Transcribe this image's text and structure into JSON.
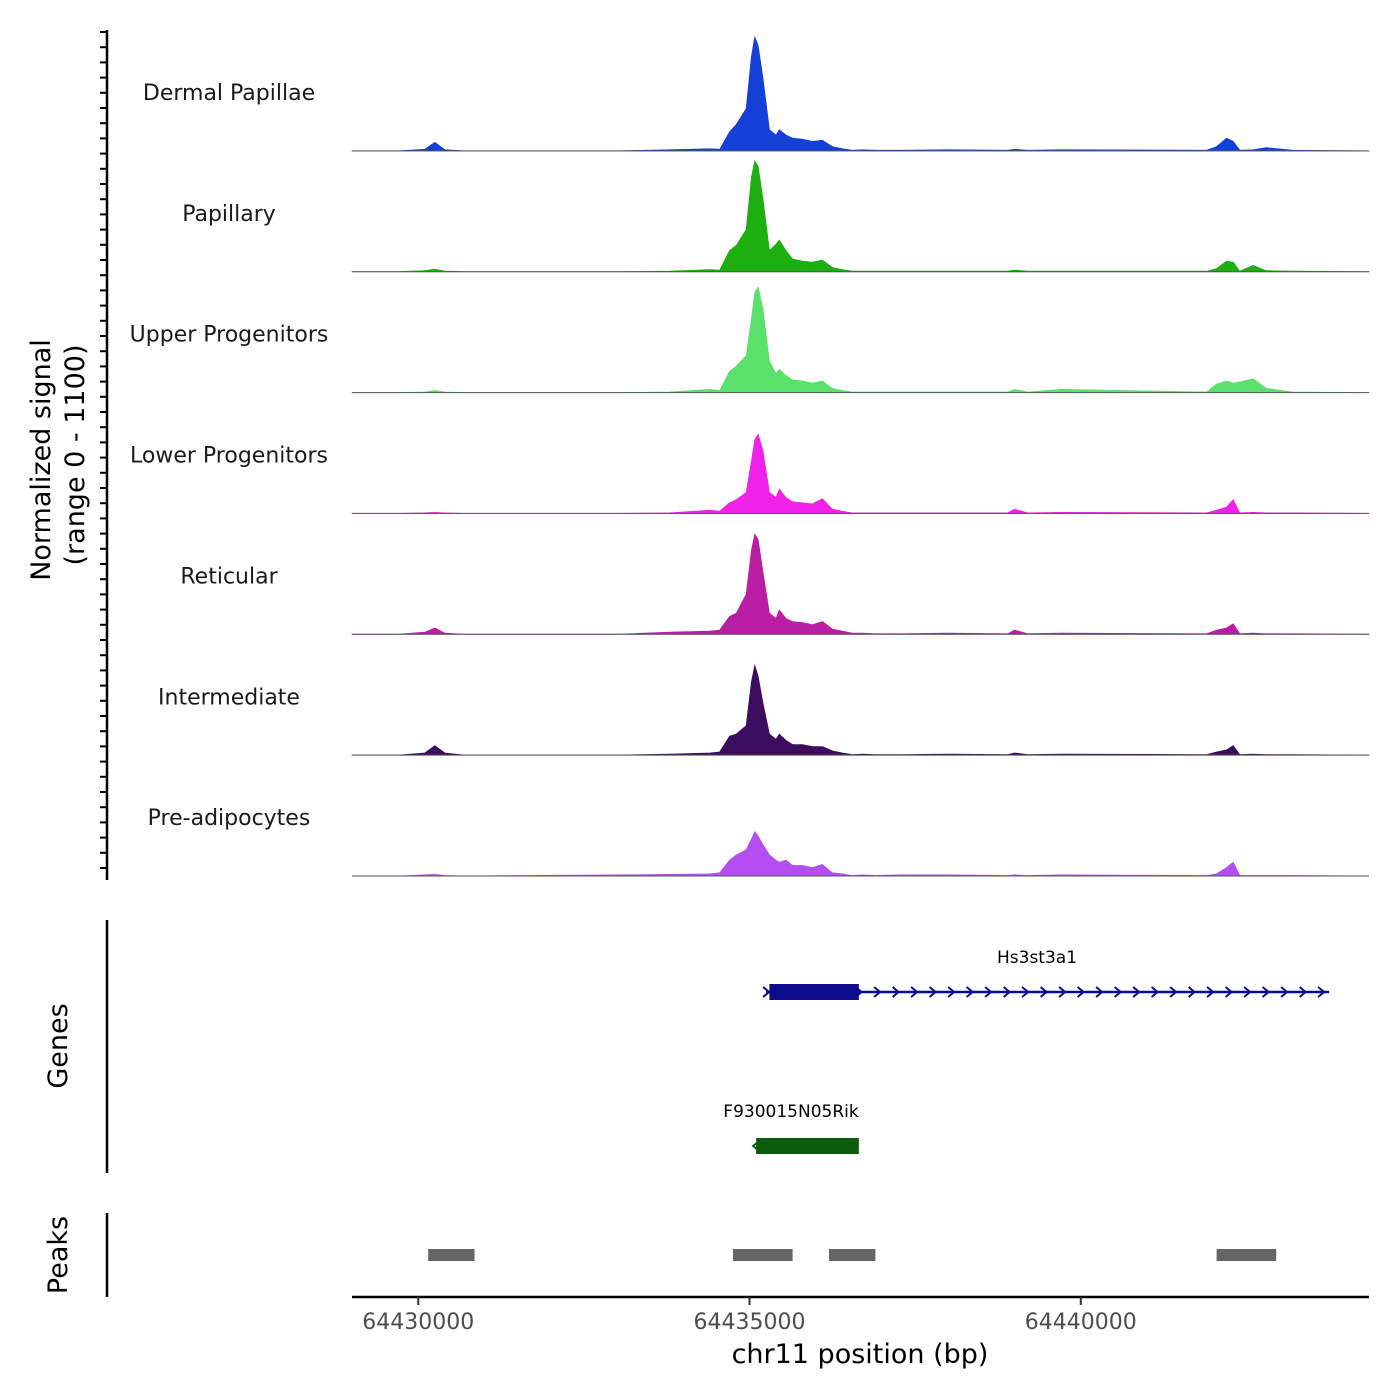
{
  "chart_data": {
    "type": "area",
    "title": "",
    "ylabel_line1": "Normalized signal",
    "ylabel_line2": "(range 0 - 1100)",
    "xlabel": "chr11 position (bp)",
    "xlim": [
      64429000,
      64444350
    ],
    "ylim": [
      0,
      1100
    ],
    "x_ticks": [
      {
        "value": 64430000,
        "label": "64430000"
      },
      {
        "value": 64435000,
        "label": "64435000"
      },
      {
        "value": 64440000,
        "label": "64440000"
      }
    ],
    "bin_positions": [
      64429000,
      64429700,
      64430100,
      64430250,
      64430400,
      64430700,
      64433000,
      64433800,
      64434400,
      64434550,
      64434700,
      64434800,
      64434950,
      64435030,
      64435080,
      64435130,
      64435200,
      64435300,
      64435400,
      64435450,
      64435550,
      64435650,
      64435800,
      64435950,
      64436100,
      64436250,
      64436400,
      64436550,
      64436700,
      64436900,
      64437300,
      64438000,
      64438900,
      64439000,
      64439200,
      64439700,
      64441900,
      64442050,
      64442200,
      64442300,
      64442400,
      64442600,
      64442800,
      64443200,
      64444350
    ],
    "series": [
      {
        "name": "Dermal Papillae",
        "color": "#1540d8",
        "values": [
          0,
          0,
          15,
          80,
          10,
          0,
          0,
          10,
          20,
          15,
          180,
          250,
          400,
          900,
          1080,
          1000,
          700,
          200,
          150,
          200,
          150,
          120,
          110,
          90,
          100,
          40,
          20,
          5,
          10,
          5,
          5,
          10,
          5,
          15,
          5,
          10,
          5,
          40,
          120,
          90,
          5,
          10,
          30,
          5,
          0
        ]
      },
      {
        "name": "Papillary",
        "color": "#1caf0f",
        "values": [
          0,
          0,
          10,
          25,
          5,
          0,
          0,
          5,
          20,
          15,
          200,
          250,
          400,
          900,
          1050,
          1000,
          700,
          200,
          260,
          300,
          200,
          120,
          100,
          90,
          110,
          40,
          20,
          5,
          5,
          5,
          5,
          5,
          5,
          15,
          5,
          5,
          5,
          30,
          100,
          90,
          5,
          60,
          10,
          5,
          0
        ]
      },
      {
        "name": "Upper Progenitors",
        "color": "#5be06b",
        "values": [
          0,
          0,
          5,
          20,
          5,
          0,
          0,
          5,
          30,
          20,
          200,
          250,
          350,
          700,
          950,
          1000,
          800,
          300,
          180,
          220,
          160,
          120,
          110,
          90,
          110,
          40,
          20,
          5,
          5,
          5,
          5,
          5,
          5,
          30,
          5,
          30,
          5,
          80,
          110,
          90,
          100,
          130,
          40,
          5,
          0
        ]
      },
      {
        "name": "Lower Progenitors",
        "color": "#f022e8",
        "values": [
          0,
          0,
          5,
          10,
          5,
          0,
          0,
          5,
          30,
          20,
          100,
          130,
          200,
          500,
          700,
          750,
          600,
          200,
          150,
          230,
          150,
          110,
          100,
          90,
          140,
          40,
          20,
          5,
          5,
          5,
          5,
          5,
          5,
          40,
          5,
          10,
          5,
          30,
          60,
          130,
          5,
          10,
          5,
          5,
          0
        ]
      },
      {
        "name": "Reticular",
        "color": "#b91ea4",
        "values": [
          0,
          0,
          20,
          60,
          10,
          0,
          0,
          20,
          30,
          40,
          170,
          200,
          380,
          800,
          950,
          900,
          600,
          200,
          150,
          230,
          150,
          120,
          110,
          90,
          120,
          50,
          30,
          10,
          10,
          5,
          5,
          10,
          5,
          40,
          5,
          10,
          5,
          40,
          60,
          100,
          5,
          10,
          5,
          5,
          0
        ]
      },
      {
        "name": "Intermediate",
        "color": "#3c0c5e",
        "values": [
          0,
          0,
          20,
          90,
          20,
          0,
          0,
          10,
          20,
          30,
          180,
          200,
          280,
          700,
          850,
          750,
          500,
          200,
          150,
          200,
          140,
          100,
          100,
          80,
          80,
          40,
          20,
          5,
          10,
          5,
          5,
          10,
          5,
          20,
          5,
          10,
          5,
          30,
          50,
          90,
          5,
          10,
          5,
          5,
          0
        ]
      },
      {
        "name": "Pre-adipocytes",
        "color": "#b44ef0",
        "values": [
          0,
          0,
          10,
          15,
          5,
          0,
          10,
          15,
          20,
          30,
          150,
          200,
          250,
          350,
          420,
          380,
          300,
          200,
          150,
          130,
          150,
          100,
          100,
          80,
          110,
          30,
          20,
          5,
          10,
          5,
          10,
          10,
          5,
          10,
          5,
          10,
          5,
          20,
          80,
          130,
          5,
          5,
          5,
          5,
          0
        ]
      }
    ],
    "genes": [
      {
        "name": "Hs3st3a1",
        "color": "#0d0d8c",
        "start": 64435250,
        "end": 64443750,
        "thick_start": 64435300,
        "thick_end": 64436650,
        "strand": "+"
      },
      {
        "name": "F930015N05Rik",
        "color": "#0b5c0b",
        "start": 64435100,
        "end": 64436650,
        "thick_start": 64435100,
        "thick_end": 64436650,
        "strand": "-"
      }
    ],
    "peaks": [
      {
        "start": 64430150,
        "end": 64430850
      },
      {
        "start": 64434750,
        "end": 64435650
      },
      {
        "start": 64436200,
        "end": 64436900
      },
      {
        "start": 64442050,
        "end": 64442950
      }
    ],
    "peak_color": "#666666",
    "genes_label": "Genes",
    "peaks_label": "Peaks"
  }
}
